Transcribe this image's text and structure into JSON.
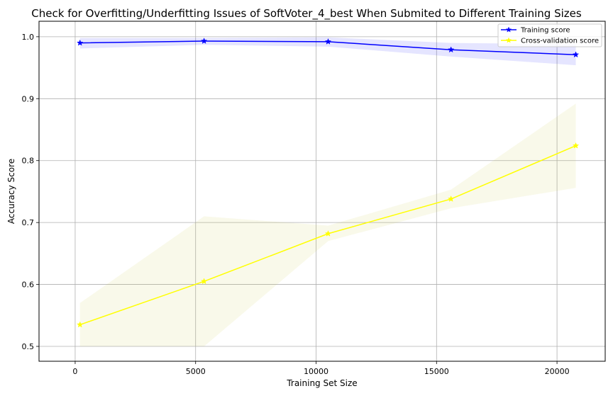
{
  "chart_data": {
    "type": "line",
    "title": "Check for Overfitting/Underfitting Issues of SoftVoter_4_best When Submited to Different Training Sizes",
    "xlabel": "Training Set Size",
    "ylabel": "Accuracy Score",
    "xlim": [
      -1500,
      22000
    ],
    "ylim": [
      0.476,
      1.025
    ],
    "xticks": [
      0,
      5000,
      10000,
      15000,
      20000
    ],
    "yticks": [
      0.5,
      0.6,
      0.7,
      0.8,
      0.9,
      1.0
    ],
    "grid": true,
    "legend_position": "top-right",
    "x": [
      200,
      5350,
      10500,
      15600,
      20780
    ],
    "series": [
      {
        "name": "Training score",
        "color": "#0000ff",
        "marker": "star",
        "values": [
          0.99,
          0.993,
          0.992,
          0.979,
          0.971
        ],
        "band_lower": [
          0.981,
          0.987,
          0.984,
          0.968,
          0.954
        ],
        "band_upper": [
          0.998,
          0.998,
          0.999,
          0.99,
          0.988
        ],
        "band_color": "#0000ff"
      },
      {
        "name": "Cross-validation score",
        "color": "#ffff00",
        "marker": "star",
        "values": [
          0.535,
          0.605,
          0.682,
          0.738,
          0.824
        ],
        "band_lower": [
          0.5,
          0.5,
          0.67,
          0.723,
          0.756
        ],
        "band_upper": [
          0.57,
          0.71,
          0.695,
          0.753,
          0.892
        ],
        "band_color": "#c8c832"
      }
    ]
  }
}
